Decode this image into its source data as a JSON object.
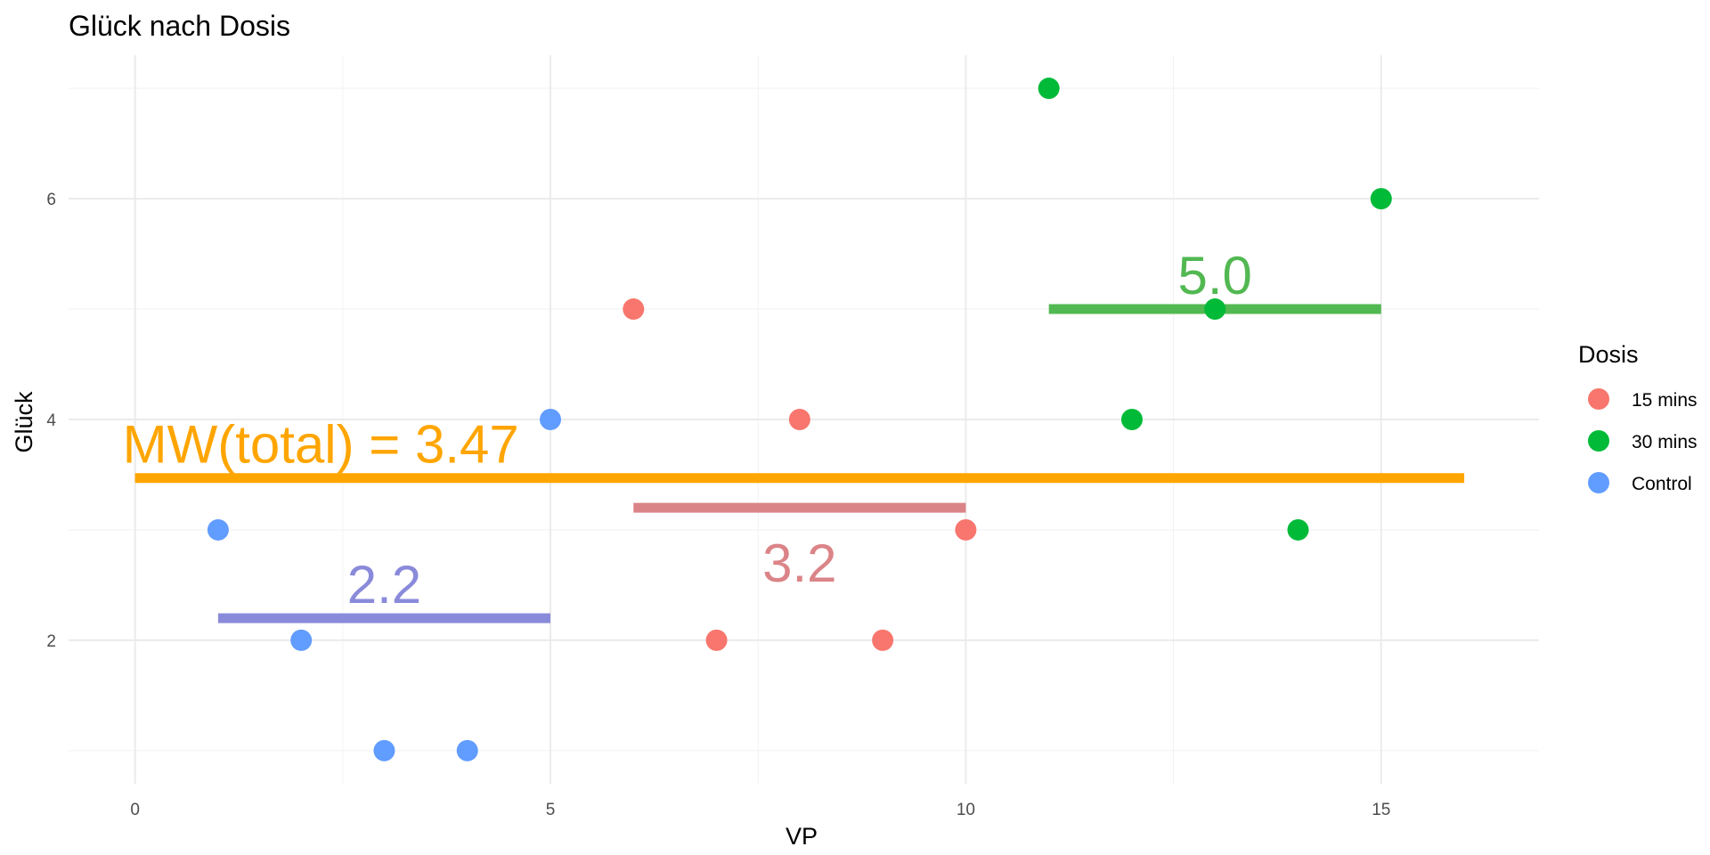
{
  "chart_data": {
    "type": "scatter",
    "title": "Glück nach Dosis",
    "xlabel": "VP",
    "ylabel": "Glück",
    "xlim": [
      -0.8,
      16.9
    ],
    "ylim": [
      0.7,
      7.3
    ],
    "x_ticks": [
      0,
      5,
      10,
      15
    ],
    "x_tick_labels": [
      "0",
      "5",
      "10",
      "15"
    ],
    "x_minor_ticks": [
      2.5,
      7.5,
      12.5
    ],
    "y_ticks": [
      2,
      4,
      6
    ],
    "y_tick_labels": [
      "2",
      "4",
      "6"
    ],
    "y_minor_ticks": [
      1,
      3,
      5,
      7
    ],
    "grid": true,
    "legend": {
      "title": "Dosis",
      "position": "right"
    },
    "series": [
      {
        "name": "15 mins",
        "color": "#F8766D",
        "x": [
          6,
          7,
          8,
          9,
          10
        ],
        "y": [
          5,
          2,
          4,
          2,
          3
        ]
      },
      {
        "name": "30 mins",
        "color": "#00BA38",
        "x": [
          11,
          12,
          13,
          14,
          15
        ],
        "y": [
          7,
          4,
          5,
          3,
          6
        ]
      },
      {
        "name": "Control",
        "color": "#619CFF",
        "x": [
          1,
          2,
          3,
          4,
          5
        ],
        "y": [
          3,
          2,
          1,
          1,
          4
        ]
      }
    ],
    "segments": [
      {
        "x_start": 0,
        "x_end": 16,
        "y": 3.47,
        "color": "#FFA500"
      },
      {
        "x_start": 6,
        "x_end": 10,
        "y": 3.2,
        "color": "#DB8488"
      },
      {
        "x_start": 11,
        "x_end": 15,
        "y": 5.0,
        "color": "#52B852"
      },
      {
        "x_start": 1,
        "x_end": 5,
        "y": 2.2,
        "color": "#8A8ADB"
      }
    ],
    "annotations": [
      {
        "text": "MW(total) = 3.47",
        "x": -0.15,
        "y": 3.47,
        "color": "#FFA500",
        "anchor": "start",
        "position": "above"
      },
      {
        "text": "3.2",
        "x": 8,
        "y": 3.2,
        "color": "#DB8488",
        "anchor": "middle",
        "position": "below"
      },
      {
        "text": "5.0",
        "x": 13,
        "y": 5.0,
        "color": "#52B852",
        "anchor": "middle",
        "position": "above"
      },
      {
        "text": "2.2",
        "x": 3,
        "y": 2.2,
        "color": "#8A8ADB",
        "anchor": "middle",
        "position": "above"
      }
    ]
  }
}
